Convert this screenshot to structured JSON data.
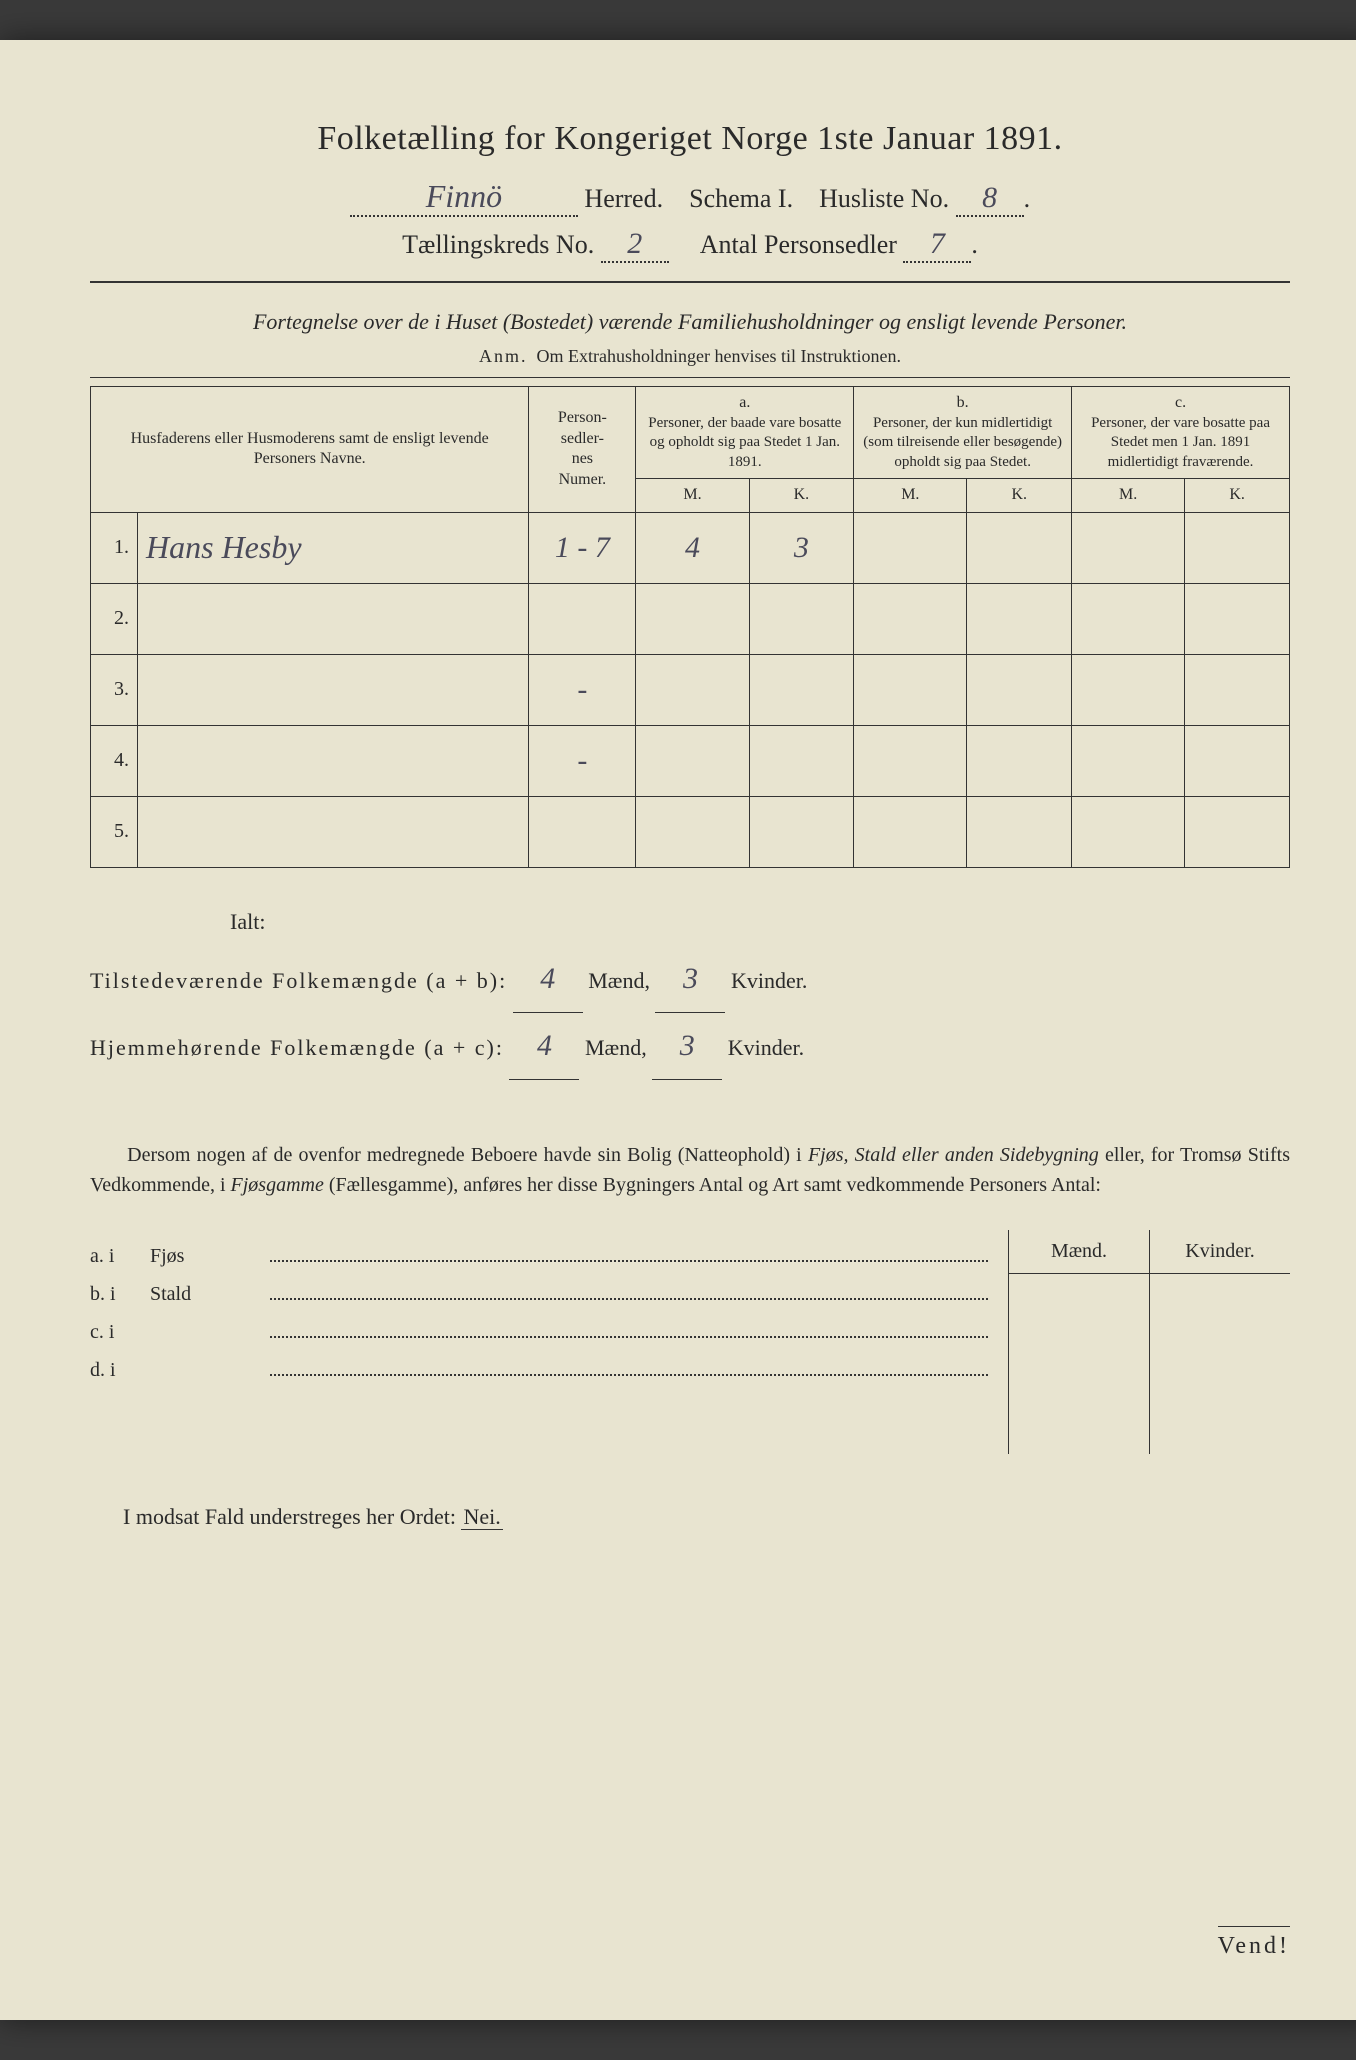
{
  "title": "Folketælling for Kongeriget Norge 1ste Januar 1891.",
  "header": {
    "herred_value": "Finnö",
    "herred_label": "Herred.",
    "schema_label": "Schema I.",
    "husliste_label": "Husliste No.",
    "husliste_value": "8",
    "kreds_label": "Tællingskreds No.",
    "kreds_value": "2",
    "sedler_label": "Antal Personsedler",
    "sedler_value": "7"
  },
  "subtitle": "Fortegnelse over de i Huset (Bostedet) værende Familiehusholdninger og ensligt levende Personer.",
  "anm": "Anm. Om Extrahusholdninger henvises til Instruktionen.",
  "table": {
    "col_name": "Husfaderens eller Husmoderens samt de ensligt levende Personers Navne.",
    "col_num": "Person-\nsedler-\nnes\nNumer.",
    "col_a_top": "a.",
    "col_a": "Personer, der baade vare bosatte og opholdt sig paa Stedet 1 Jan. 1891.",
    "col_b_top": "b.",
    "col_b": "Personer, der kun midlertidigt (som tilreisende eller besøgende) opholdt sig paa Stedet.",
    "col_c_top": "c.",
    "col_c": "Personer, der vare bosatte paa Stedet men 1 Jan. 1891 midlertidigt fraværende.",
    "mk_m": "M.",
    "mk_k": "K.",
    "rows": [
      {
        "n": "1.",
        "name": "Hans Hesby",
        "num": "1 - 7",
        "a_m": "4",
        "a_k": "3",
        "b_m": "",
        "b_k": "",
        "c_m": "",
        "c_k": ""
      },
      {
        "n": "2.",
        "name": "",
        "num": "",
        "a_m": "",
        "a_k": "",
        "b_m": "",
        "b_k": "",
        "c_m": "",
        "c_k": ""
      },
      {
        "n": "3.",
        "name": "",
        "num": "-",
        "a_m": "",
        "a_k": "",
        "b_m": "",
        "b_k": "",
        "c_m": "",
        "c_k": ""
      },
      {
        "n": "4.",
        "name": "",
        "num": "-",
        "a_m": "",
        "a_k": "",
        "b_m": "",
        "b_k": "",
        "c_m": "",
        "c_k": ""
      },
      {
        "n": "5.",
        "name": "",
        "num": "",
        "a_m": "",
        "a_k": "",
        "b_m": "",
        "b_k": "",
        "c_m": "",
        "c_k": ""
      }
    ]
  },
  "totals": {
    "ialt": "Ialt:",
    "line1_label": "Tilstedeværende Folkemængde (a + b):",
    "line1_m": "4",
    "line1_k": "3",
    "line2_label": "Hjemmehørende Folkemængde (a + c):",
    "line2_m": "4",
    "line2_k": "3",
    "maend": "Mænd,",
    "kvinder": "Kvinder."
  },
  "para": "Dersom nogen af de ovenfor medregnede Beboere havde sin Bolig (Natteophold) i Fjøs, Stald eller anden Sidebygning eller, for Tromsø Stifts Vedkommende, i Fjøsgamme (Fællesgamme), anføres her disse Bygningers Antal og Art samt vedkommende Personers Antal:",
  "byg": {
    "head_m": "Mænd.",
    "head_k": "Kvinder.",
    "rows": [
      {
        "lead": "a.  i",
        "type": "Fjøs"
      },
      {
        "lead": "b.  i",
        "type": "Stald"
      },
      {
        "lead": "c.  i",
        "type": ""
      },
      {
        "lead": "d.  i",
        "type": ""
      }
    ]
  },
  "nei_line_pre": "I modsat Fald understreges her Ordet: ",
  "nei_word": "Nei.",
  "vend": "Vend!",
  "colors": {
    "paper": "#e8e4d0",
    "ink": "#2a2a2a",
    "handwriting": "#4a4a5a"
  }
}
